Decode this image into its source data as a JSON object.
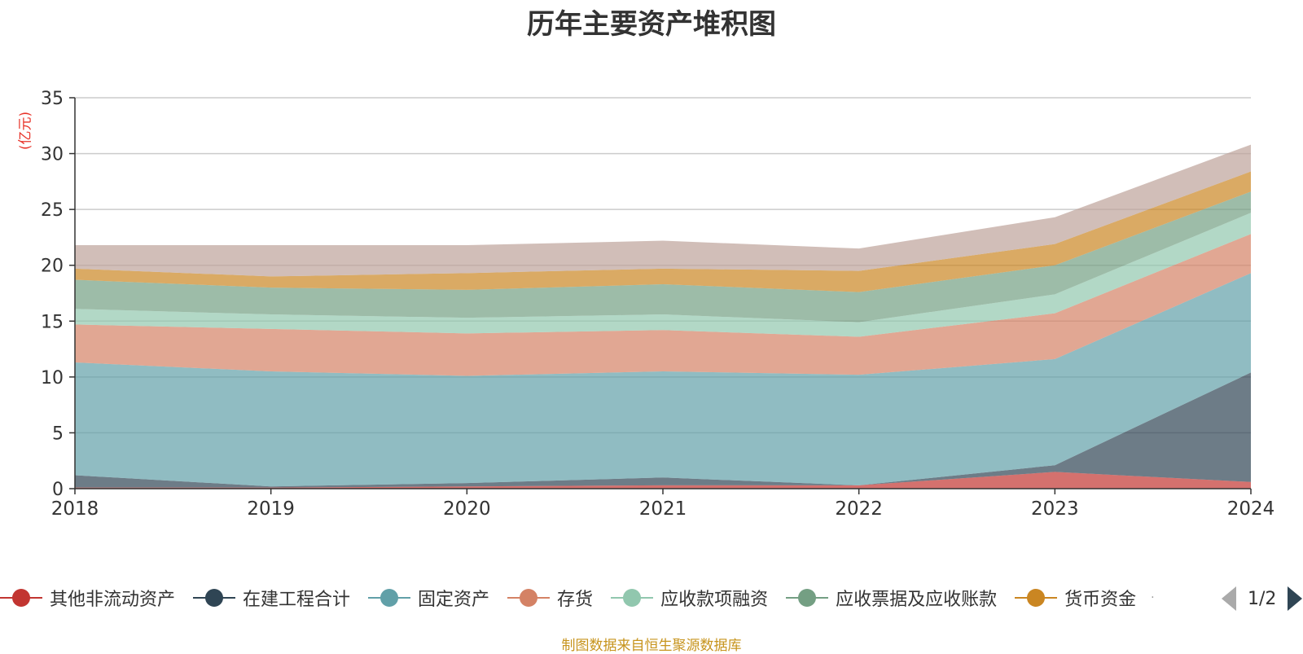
{
  "title": "历年主要资产堆积图",
  "unit": "(亿元)",
  "source": "制图数据来自恒生聚源数据库",
  "pager": {
    "text": "1/2"
  },
  "legend_more": "·",
  "chart_data": {
    "type": "area",
    "stacked": true,
    "title": "历年主要资产堆积图",
    "ylabel": "(亿元)",
    "x": [
      "2018",
      "2019",
      "2020",
      "2021",
      "2022",
      "2023",
      "2024"
    ],
    "ylim": [
      0,
      35
    ],
    "yticks": [
      0,
      5,
      10,
      15,
      20,
      25,
      30,
      35
    ],
    "grid": true,
    "legend_position": "bottom",
    "series": [
      {
        "name": "其他非流动资产",
        "color": "#c23531",
        "values": [
          0.1,
          0.1,
          0.2,
          0.3,
          0.3,
          1.5,
          0.6
        ]
      },
      {
        "name": "在建工程合计",
        "color": "#2f4554",
        "values": [
          1.1,
          0.1,
          0.3,
          0.7,
          0.0,
          0.6,
          9.8
        ]
      },
      {
        "name": "固定资产",
        "color": "#61a0a8",
        "values": [
          10.1,
          10.3,
          9.6,
          9.5,
          9.9,
          9.5,
          8.9
        ]
      },
      {
        "name": "存货",
        "color": "#d48265",
        "values": [
          3.4,
          3.8,
          3.8,
          3.7,
          3.4,
          4.1,
          3.5
        ]
      },
      {
        "name": "应收款项融资",
        "color": "#91c7ae",
        "values": [
          1.4,
          1.3,
          1.4,
          1.4,
          1.3,
          1.7,
          1.9
        ]
      },
      {
        "name": "应收票据及应收账款",
        "color": "#749f83",
        "values": [
          2.6,
          2.4,
          2.5,
          2.7,
          2.7,
          2.6,
          1.9
        ]
      },
      {
        "name": "货币资金",
        "color": "#ca8622",
        "values": [
          1.0,
          1.0,
          1.5,
          1.4,
          1.9,
          1.9,
          1.8
        ]
      },
      {
        "name": "",
        "color": "#bda29a",
        "values": [
          2.1,
          2.8,
          2.5,
          2.5,
          2.0,
          2.4,
          2.4
        ]
      }
    ]
  }
}
